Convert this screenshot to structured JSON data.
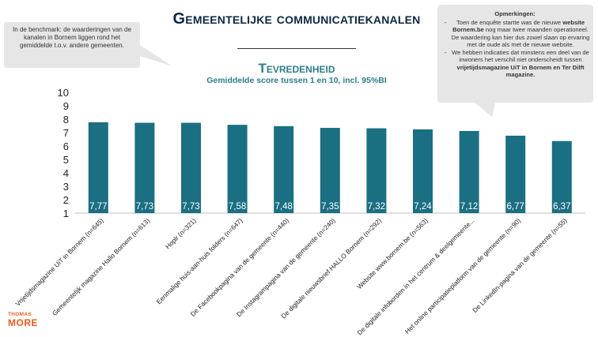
{
  "header": {
    "title": "Gemeentelijke communicatiekanalen",
    "subtitle": "Tevredenheid",
    "subsubtitle": "Gemiddelde score tussen 1 en 10, incl. 95%BI"
  },
  "callout_left": {
    "text": "In de benchmark: de waarderingen van de kanalen in Bornem liggen rond het gemiddelde t.o.v. andere gemeenten."
  },
  "callout_right": {
    "title": "Opmerkingen:",
    "bullet1_pre": "Toen de enquête startte was de nieuwe ",
    "bullet1_bold": "website Bornem.be",
    "bullet1_post": " nog maar twee maanden operationeel. De waardering kan hier dus zowel slaan op ervaring met de oude als met de nieuwe website.",
    "bullet2_pre": "We hebben indicaties dat minstens een deel van de inwoners het verschil niet onderscheidt tussen ",
    "bullet2_bold": "vrijetijdsmagazine UiT in Bornem en Ter Dilft magazine."
  },
  "logo": {
    "line1": "THOMAS",
    "line2": "MORE"
  },
  "colors": {
    "bar": "#1b6f82",
    "title": "#0e2841",
    "accent": "#2e7d8a",
    "logo": "#e85d1f",
    "callout": "#e6e6e6"
  },
  "chart_data": {
    "type": "bar",
    "categories": [
      "Vrijetijdsmagazine UiT in Bornem (n=645)",
      "Gemeentelijk magazine Hallo Bornem (n=613)",
      "Hoplr (n=321)",
      "Eenmalige huis-aan-huis folders (n=647)",
      "De Facebookpagina van de gemeente (n=440)",
      "De Instagrampagina van de gemeente (n=240)",
      "De digitale nieuwsbrief HALLO Bornem (n=292)",
      "Website www.bornem.be (n=563)",
      "De digitale infoborden in het centrum & deelgemeente...",
      "Het online participatieplatform van de gemeente (n=90)",
      "De LinkedIn-pagina van de gemeente (n=55)"
    ],
    "values": [
      7.77,
      7.73,
      7.73,
      7.58,
      7.48,
      7.35,
      7.32,
      7.24,
      7.12,
      6.77,
      6.37
    ],
    "value_labels": [
      "7,77",
      "7,73",
      "7,73",
      "7,58",
      "7,48",
      "7,35",
      "7,32",
      "7,24",
      "7,12",
      "6,77",
      "6,37"
    ],
    "yticks": [
      "1",
      "2",
      "3",
      "4",
      "5",
      "6",
      "7",
      "8",
      "9",
      "10"
    ],
    "ylim": [
      1,
      10
    ],
    "xlabel": "",
    "ylabel": "",
    "grid": false,
    "legend": "none"
  }
}
